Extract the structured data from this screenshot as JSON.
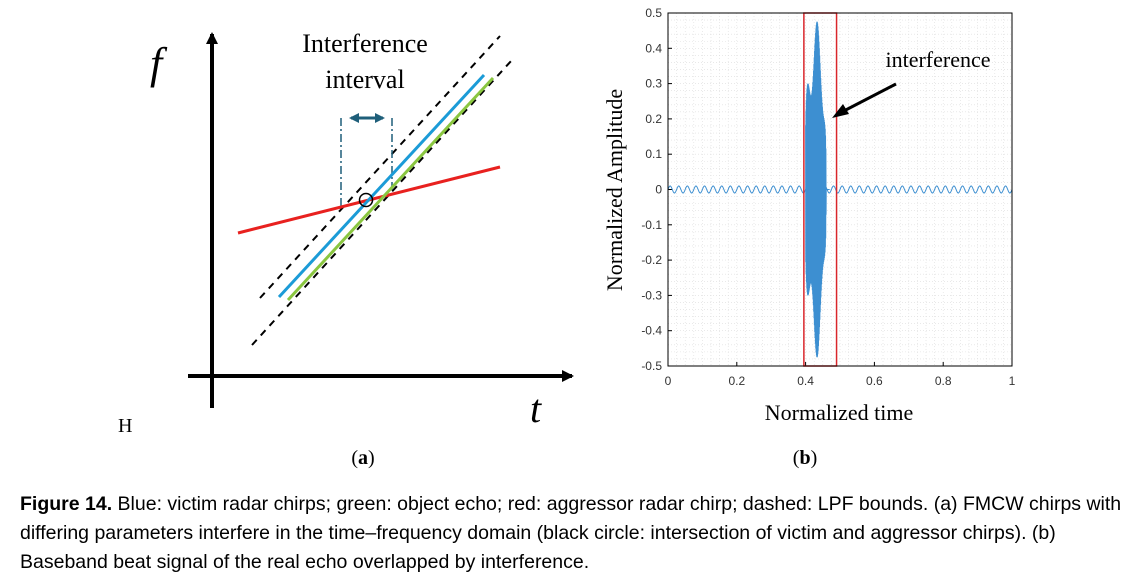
{
  "panel_a": {
    "f_label": "f",
    "t_label": "t",
    "interval_line1": "Interference",
    "interval_line2": "interval",
    "h_label": "H",
    "sub_label_open": "(",
    "sub_label_letter": "a",
    "sub_label_close": ")",
    "colors": {
      "victim": "#1b9bd7",
      "echo": "#8ac640",
      "aggressor": "#e8211f",
      "interval_arrow": "#1f5f7a"
    }
  },
  "panel_b": {
    "sub_label_open": "(",
    "sub_label_letter": "b",
    "sub_label_close": ")",
    "annotation": "interference",
    "highlight_color": "#d9262b",
    "signal_color": "#3d8fd1"
  },
  "chart_data": {
    "type": "line",
    "title": "",
    "xlabel": "Normalized time",
    "ylabel": "Normalized Amplitude",
    "xlim": [
      0,
      1
    ],
    "ylim": [
      -0.5,
      0.5
    ],
    "xticks": [
      "0",
      "0.2",
      "0.4",
      "0.6",
      "0.8",
      "1"
    ],
    "yticks": [
      "0.5",
      "0.4",
      "0.3",
      "0.2",
      "0.1",
      "0",
      "-0.1",
      "-0.2",
      "-0.3",
      "-0.4",
      "-0.5"
    ],
    "grid": true,
    "background": {
      "amplitude": 0.01,
      "cycles": 40
    },
    "interference": {
      "x_start": 0.4,
      "x_end": 0.47,
      "amplitude": 0.48
    },
    "highlight_box": {
      "x": [
        0.395,
        0.49
      ],
      "y": [
        -0.5,
        0.5
      ]
    }
  },
  "caption": {
    "figure_label": "Figure 14.",
    "text": " Blue: victim radar chirps; green: object echo; red: aggressor radar chirp; dashed: LPF bounds. (a) FMCW chirps with differing parameters interfere in the time–frequency domain (black circle: intersection of victim and aggressor chirps). (b) Baseband beat signal of the real echo overlapped by interference."
  }
}
